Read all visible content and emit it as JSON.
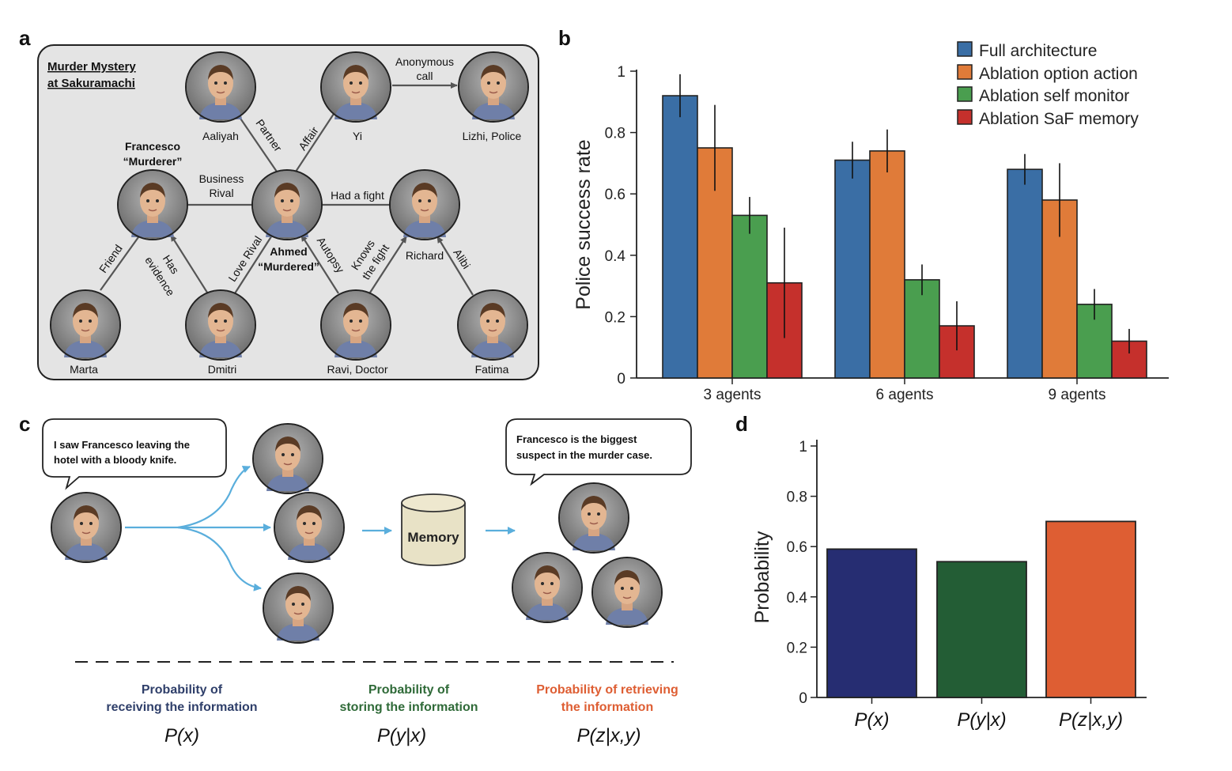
{
  "panels": {
    "a": "a",
    "b": "b",
    "c": "c",
    "d": "d"
  },
  "panel_a": {
    "title_line1": "Murder Mystery",
    "title_line2": "at Sakuramachi",
    "nodes": {
      "aaliyah": "Aaliyah",
      "yi": "Yi",
      "lizhi": "Lizhi, Police",
      "francesco_name": "Francesco",
      "francesco_role": "“Murderer”",
      "ahmed_name": "Ahmed",
      "ahmed_role": "“Murdered”",
      "richard": "Richard",
      "marta": "Marta",
      "dmitri": "Dmitri",
      "ravi": "Ravi, Doctor",
      "fatima": "Fatima"
    },
    "edges": {
      "anonymous_call_1": "Anonymous",
      "anonymous_call_2": "call",
      "partner": "Partner",
      "affair": "Affair",
      "business_rival_1": "Business",
      "business_rival_2": "Rival",
      "had_a_fight": "Had a fight",
      "friend": "Friend",
      "has_evidence_1": "Has",
      "has_evidence_2": "evidence",
      "love_rival": "Love Rival",
      "autopsy": "Autopsy",
      "knows_fight_1": "Knows",
      "knows_fight_2": "the fight",
      "alibi": "Alibi"
    }
  },
  "colors": {
    "full": "#3a6ea5",
    "option": "#e07b39",
    "self": "#4a9e4f",
    "saf": "#c5302c",
    "px": "#262d72",
    "pyx": "#235d35",
    "pzxy": "#de5e33",
    "arrow": "#5aaedc"
  },
  "chart_data": [
    {
      "type": "bar",
      "panel": "b",
      "categories": [
        "3 agents",
        "6 agents",
        "9 agents"
      ],
      "ylabel": "Police success rate",
      "ylim": [
        0,
        1
      ],
      "yticks": [
        "0",
        "0.2",
        "0.4",
        "0.6",
        "0.8",
        "1"
      ],
      "yticks_values": [
        0,
        0.2,
        0.4,
        0.6,
        0.8,
        1
      ],
      "legend_position": "top-right",
      "series": [
        {
          "name": "Full architecture",
          "color": "#3a6ea5",
          "values": [
            0.92,
            0.71,
            0.68
          ],
          "err": [
            0.07,
            0.06,
            0.05
          ]
        },
        {
          "name": "Ablation option action",
          "color": "#e07b39",
          "values": [
            0.75,
            0.74,
            0.58
          ],
          "err": [
            0.14,
            0.07,
            0.12
          ]
        },
        {
          "name": "Ablation self monitor",
          "color": "#4a9e4f",
          "values": [
            0.53,
            0.32,
            0.24
          ],
          "err": [
            0.06,
            0.05,
            0.05
          ]
        },
        {
          "name": "Ablation SaF memory",
          "color": "#c5302c",
          "values": [
            0.31,
            0.17,
            0.12
          ],
          "err": [
            0.18,
            0.08,
            0.04
          ]
        }
      ]
    },
    {
      "type": "bar",
      "panel": "d",
      "categories": [
        "P(x)",
        "P(y|x)",
        "P(z|x,y)"
      ],
      "values": [
        0.59,
        0.54,
        0.7
      ],
      "colors": [
        "#262d72",
        "#235d35",
        "#de5e33"
      ],
      "ylabel": "Probability",
      "ylim": [
        0,
        1
      ],
      "yticks": [
        "0",
        "0.2",
        "0.4",
        "0.6",
        "0.8",
        "1"
      ],
      "yticks_values": [
        0,
        0.2,
        0.4,
        0.6,
        0.8,
        1
      ]
    }
  ],
  "panel_c": {
    "bubble1_line1": "I saw Francesco leaving the",
    "bubble1_line2": "hotel with a bloody knife.",
    "bubble2_line1": "Francesco is the biggest",
    "bubble2_line2": "suspect in the murder case.",
    "memory": "Memory",
    "px_line1": "Probability of",
    "px_line2": "receiving the information",
    "px_formula": "P(x)",
    "pyx_line1": "Probability of",
    "pyx_line2": "storing the information",
    "pyx_formula": "P(y|x)",
    "pzxy_line1": "Probability of retrieving",
    "pzxy_line2": "the information",
    "pzxy_formula": "P(z|x,y)"
  }
}
